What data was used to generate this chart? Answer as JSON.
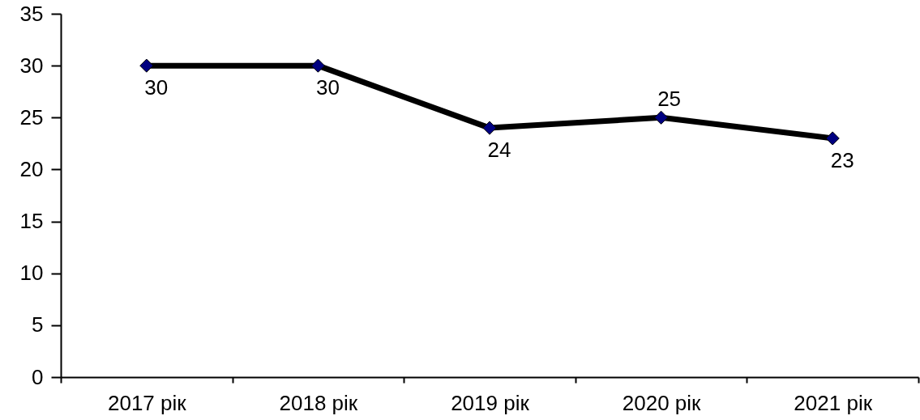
{
  "chart_data": {
    "type": "line",
    "categories": [
      "2017 рік",
      "2018 рік",
      "2019 рік",
      "2020 рік",
      "2021 рік"
    ],
    "series": [
      {
        "color": "#000000",
        "values": [
          30,
          30,
          24,
          25,
          23
        ]
      }
    ],
    "ylim": [
      0,
      35
    ],
    "yticks": [
      0,
      5,
      10,
      15,
      20,
      25,
      30,
      35
    ],
    "marker": "diamond",
    "line_style": "solid",
    "data_labels": true
  }
}
